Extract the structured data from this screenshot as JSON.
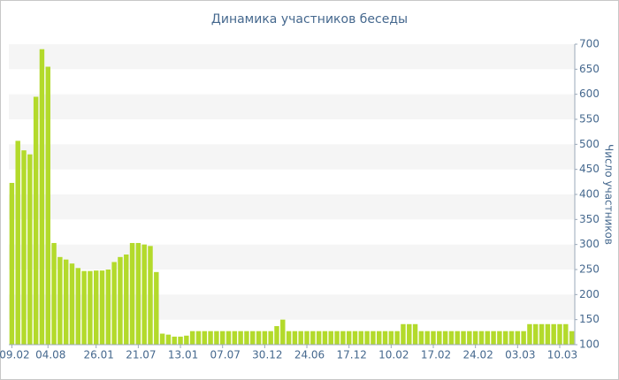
{
  "chart_data": {
    "type": "bar",
    "title": "Динамика участников беседы",
    "y_axis_label": "Число участников",
    "categories": [
      "09.02",
      null,
      null,
      null,
      null,
      null,
      "04.08",
      null,
      null,
      null,
      null,
      null,
      null,
      null,
      "26.01",
      null,
      null,
      null,
      null,
      null,
      null,
      "21.07",
      null,
      null,
      null,
      null,
      null,
      null,
      "13.01",
      null,
      null,
      null,
      null,
      null,
      null,
      "07.07",
      null,
      null,
      null,
      null,
      null,
      null,
      "30.12",
      null,
      null,
      null,
      null,
      null,
      null,
      "24.06",
      null,
      null,
      null,
      null,
      null,
      null,
      "17.12",
      null,
      null,
      null,
      null,
      null,
      null,
      "10.02",
      null,
      null,
      null,
      null,
      null,
      null,
      "17.02",
      null,
      null,
      null,
      null,
      null,
      null,
      "24.02",
      null,
      null,
      null,
      null,
      null,
      null,
      "03.03",
      null,
      null,
      null,
      null,
      null,
      null,
      "10.03",
      null,
      null
    ],
    "values": [
      423,
      507,
      488,
      480,
      595,
      690,
      655,
      303,
      275,
      270,
      262,
      253,
      247,
      247,
      248,
      248,
      250,
      265,
      275,
      280,
      303,
      303,
      300,
      297,
      245,
      122,
      120,
      116,
      116,
      118,
      127,
      127,
      127,
      127,
      127,
      127,
      127,
      127,
      127,
      127,
      127,
      127,
      127,
      127,
      137,
      150,
      127,
      127,
      127,
      127,
      127,
      127,
      127,
      127,
      127,
      127,
      127,
      127,
      127,
      127,
      127,
      127,
      127,
      127,
      127,
      141,
      141,
      141,
      127,
      127,
      127,
      127,
      127,
      127,
      127,
      127,
      127,
      127,
      127,
      127,
      127,
      127,
      127,
      127,
      127,
      127,
      141,
      141,
      141,
      141,
      141,
      141,
      141,
      127
    ],
    "color": "#b3da2b",
    "ylim": [
      100,
      700
    ],
    "yticks": [
      100,
      150,
      200,
      250,
      300,
      350,
      400,
      450,
      500,
      550,
      600,
      650,
      700
    ],
    "grid": true
  }
}
